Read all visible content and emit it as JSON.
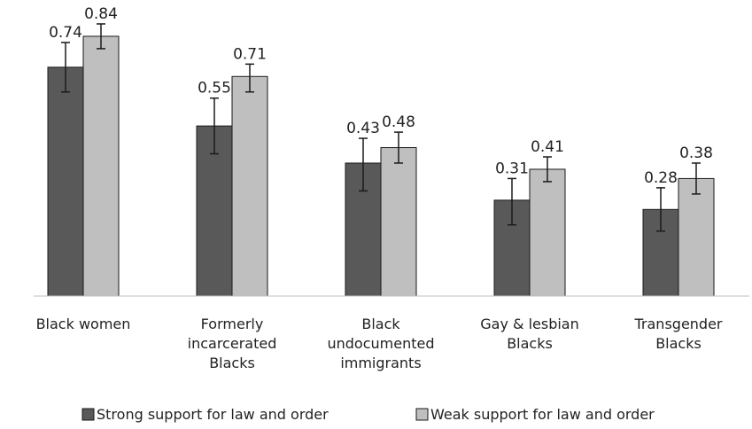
{
  "chart_data": {
    "type": "bar",
    "title": "",
    "xlabel": "",
    "ylabel": "",
    "ylim": [
      0,
      0.9
    ],
    "grid": false,
    "legend_position": "bottom",
    "categories": [
      [
        "Black women"
      ],
      [
        "Formerly",
        "incarcerated",
        "Blacks"
      ],
      [
        "Black",
        "undocumented",
        "immigrants"
      ],
      [
        "Gay & lesbian",
        "Blacks"
      ],
      [
        "Transgender",
        "Blacks"
      ]
    ],
    "series": [
      {
        "name": "Strong support for law and order",
        "color": "#595959",
        "values": [
          0.74,
          0.55,
          0.43,
          0.31,
          0.28
        ],
        "error_low": [
          0.66,
          0.46,
          0.34,
          0.23,
          0.21
        ],
        "error_high": [
          0.82,
          0.64,
          0.51,
          0.38,
          0.35
        ]
      },
      {
        "name": "Weak support for law and order",
        "color": "#bfbfbf",
        "values": [
          0.84,
          0.71,
          0.48,
          0.41,
          0.38
        ],
        "error_low": [
          0.8,
          0.66,
          0.43,
          0.37,
          0.33
        ],
        "error_high": [
          0.88,
          0.75,
          0.53,
          0.45,
          0.43
        ]
      }
    ]
  }
}
